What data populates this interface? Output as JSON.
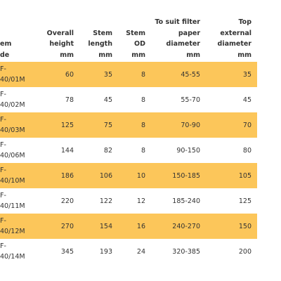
{
  "table": {
    "header": [
      [
        "em",
        "de"
      ],
      [
        "Overall",
        "height",
        "mm"
      ],
      [
        "Stem",
        "length",
        "mm"
      ],
      [
        "Stem",
        "OD",
        "mm"
      ],
      [
        "To suit filter",
        "paper",
        "diameter",
        "mm"
      ],
      [
        "Top",
        "external",
        "diameter",
        "mm"
      ]
    ],
    "rows": [
      [
        [
          "F-",
          "40/01M"
        ],
        "60",
        "35",
        "8",
        "45-55",
        "35"
      ],
      [
        [
          "F-",
          "40/02M"
        ],
        "78",
        "45",
        "8",
        "55-70",
        "45"
      ],
      [
        [
          "F-",
          "40/03M"
        ],
        "125",
        "75",
        "8",
        "70-90",
        "70"
      ],
      [
        [
          "F-",
          "40/06M"
        ],
        "144",
        "82",
        "8",
        "90-150",
        "80"
      ],
      [
        [
          "F-",
          "40/10M"
        ],
        "186",
        "106",
        "10",
        "150-185",
        "105"
      ],
      [
        [
          "F-",
          "40/11M"
        ],
        "220",
        "122",
        "12",
        "185-240",
        "125"
      ],
      [
        [
          "F-",
          "40/12M"
        ],
        "270",
        "154",
        "16",
        "240-270",
        "150"
      ],
      [
        [
          "F-",
          "40/14M"
        ],
        "345",
        "193",
        "24",
        "320-385",
        "200"
      ]
    ]
  }
}
